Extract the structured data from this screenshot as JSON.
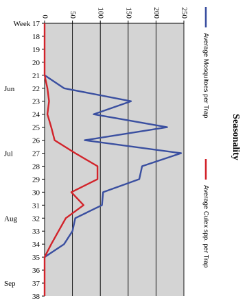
{
  "chart_data": {
    "type": "line",
    "title": "Seasonality",
    "orientation": "rotated-90-cw",
    "x": [
      17,
      18,
      19,
      20,
      21,
      22,
      23,
      24,
      25,
      26,
      27,
      28,
      29,
      30,
      31,
      32,
      33,
      34,
      35,
      36,
      37,
      38
    ],
    "x_tick_labels": [
      "Week 17",
      "18",
      "19",
      "20",
      "21",
      "22",
      "23",
      "24",
      "25",
      "26",
      "27",
      "28",
      "29",
      "30",
      "31",
      "32",
      "33",
      "34",
      "35",
      "36",
      "37",
      "38"
    ],
    "month_labels": [
      {
        "label": "Jun",
        "week": 22
      },
      {
        "label": "Jul",
        "week": 27
      },
      {
        "label": "Aug",
        "week": 32
      },
      {
        "label": "Sep",
        "week": 37
      }
    ],
    "y_ticks": [
      0,
      50,
      100,
      150,
      200,
      250
    ],
    "y_tick_labels": [
      "0",
      "50",
      "100",
      "150",
      "200",
      "250"
    ],
    "ylim": [
      0,
      250
    ],
    "grid": true,
    "legend_position": "right",
    "series": [
      {
        "name": "Average Mosquitoes per Trap",
        "color": "#3a4fa0",
        "x": [
          21,
          22,
          23,
          24,
          25,
          26,
          27,
          28,
          29,
          30,
          31,
          32,
          33,
          34,
          35
        ],
        "values": [
          0,
          35,
          155,
          88,
          220,
          72,
          245,
          175,
          170,
          105,
          103,
          55,
          50,
          35,
          0
        ]
      },
      {
        "name": "Average Culex spp. per Trap",
        "color": "#d2232a",
        "x": [
          17,
          18,
          19,
          20,
          21,
          22,
          23,
          24,
          25,
          26,
          27,
          28,
          29,
          30,
          31,
          32,
          33,
          34,
          35,
          36,
          37,
          38
        ],
        "values": [
          0,
          0,
          0,
          0,
          0,
          5,
          8,
          5,
          12,
          18,
          55,
          95,
          95,
          48,
          70,
          38,
          25,
          12,
          0,
          0,
          0,
          0
        ]
      }
    ]
  }
}
